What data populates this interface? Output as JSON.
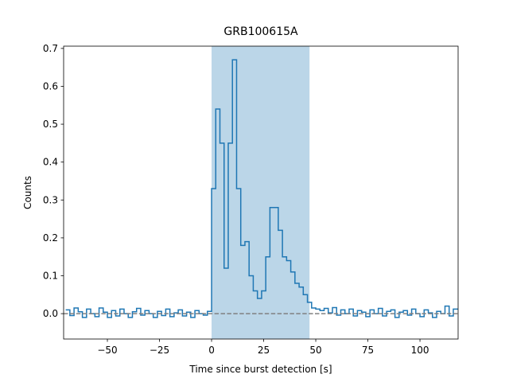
{
  "chart_data": {
    "type": "step",
    "title": "GRB100615A",
    "x_label": "Time since burst detection [s]",
    "y_label": "Counts",
    "xlim": [
      -71,
      118.3
    ],
    "ylim": [
      -0.067,
      0.706
    ],
    "xticks": [
      {
        "value": -50,
        "label": "−50"
      },
      {
        "value": -25,
        "label": "−25"
      },
      0,
      25,
      50,
      75,
      100
    ],
    "yticks": [
      {
        "value": 0,
        "label": "0.0"
      },
      0.1,
      0.2,
      0.3,
      0.4,
      0.5,
      0.6,
      0.7
    ],
    "span": [
      0,
      47
    ],
    "span_color": "#1f77b4",
    "hline": 0,
    "hline_color": "#808080",
    "series": [
      {
        "color": "#1f77b4",
        "x": [
          -70,
          -68,
          -66,
          -64,
          -62,
          -60,
          -58,
          -56,
          -54,
          -52,
          -50,
          -48,
          -46,
          -44,
          -42,
          -40,
          -38,
          -36,
          -34,
          -32,
          -30,
          -28,
          -26,
          -24,
          -22,
          -20,
          -18,
          -16,
          -14,
          -12,
          -10,
          -8,
          -6,
          -4,
          -2,
          0,
          2,
          4,
          6,
          8,
          10,
          12,
          14,
          16,
          18,
          20,
          22,
          24,
          26,
          28,
          30,
          32,
          34,
          36,
          38,
          40,
          42,
          44,
          46,
          48,
          50,
          52,
          54,
          56,
          58,
          60,
          62,
          64,
          66,
          68,
          70,
          72,
          74,
          76,
          78,
          80,
          82,
          84,
          86,
          88,
          90,
          92,
          94,
          96,
          98,
          100,
          102,
          104,
          106,
          108,
          110,
          112,
          114,
          116
        ],
        "values": [
          0.01,
          -0.005,
          0.015,
          0.005,
          -0.01,
          0.012,
          0.0,
          -0.008,
          0.015,
          0.004,
          -0.01,
          0.008,
          -0.006,
          0.012,
          0.0,
          -0.01,
          0.005,
          0.014,
          -0.004,
          0.008,
          0.0,
          -0.01,
          0.006,
          -0.005,
          0.012,
          -0.008,
          0.002,
          0.01,
          -0.006,
          0.004,
          -0.01,
          0.008,
          0.0,
          -0.004,
          0.006,
          0.33,
          0.54,
          0.45,
          0.12,
          0.45,
          0.67,
          0.33,
          0.18,
          0.19,
          0.1,
          0.06,
          0.04,
          0.06,
          0.15,
          0.28,
          0.28,
          0.22,
          0.15,
          0.14,
          0.11,
          0.08,
          0.07,
          0.05,
          0.03,
          0.015,
          0.012,
          0.008,
          0.014,
          0.002,
          0.016,
          -0.004,
          0.01,
          0.0,
          0.012,
          -0.006,
          0.008,
          0.004,
          -0.008,
          0.01,
          0.0,
          0.014,
          -0.006,
          0.006,
          0.01,
          -0.01,
          0.004,
          0.008,
          -0.004,
          0.012,
          0.0,
          -0.008,
          0.01,
          0.002,
          -0.01,
          0.006,
          0.0,
          0.02,
          -0.006,
          0.012
        ]
      }
    ]
  }
}
